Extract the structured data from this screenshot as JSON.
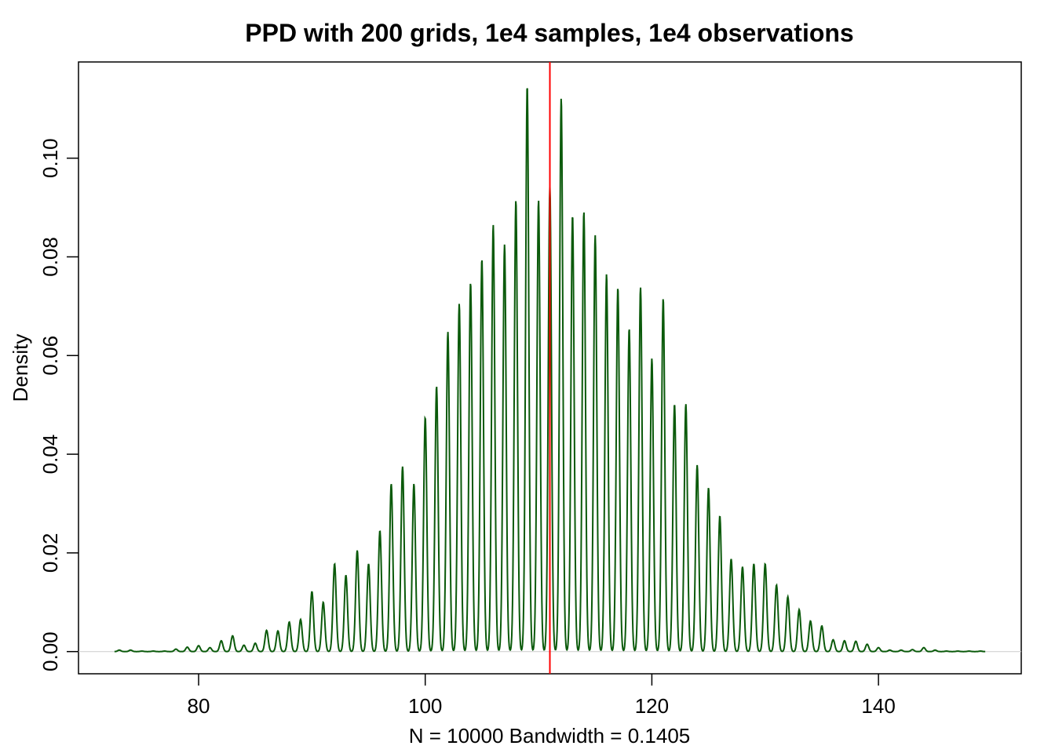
{
  "chart_data": {
    "type": "line",
    "title": "PPD with 200 grids, 1e4 samples, 1e4 observations",
    "xlabel": "N = 10000   Bandwidth = 0.1405",
    "ylabel": "Density",
    "xlim": [
      69.4,
      152.6
    ],
    "ylim": [
      -0.0045,
      0.1195
    ],
    "x_ticks": [
      80,
      100,
      120,
      140
    ],
    "x_tick_labels": [
      "80",
      "100",
      "120",
      "140"
    ],
    "y_ticks": [
      0.0,
      0.02,
      0.04,
      0.06,
      0.08,
      0.1
    ],
    "y_tick_labels": [
      "0.00",
      "0.02",
      "0.04",
      "0.06",
      "0.08",
      "0.10"
    ],
    "grid": false,
    "bandwidth": 0.1405,
    "n": 10000,
    "series": [
      {
        "color": "#0b5a0b",
        "x": [
          73,
          74,
          75,
          76,
          77,
          78,
          79,
          80,
          81,
          82,
          83,
          84,
          85,
          86,
          87,
          88,
          89,
          90,
          91,
          92,
          93,
          94,
          95,
          96,
          97,
          98,
          99,
          100,
          101,
          102,
          103,
          104,
          105,
          106,
          107,
          108,
          109,
          110,
          111,
          112,
          113,
          114,
          115,
          116,
          117,
          118,
          119,
          120,
          121,
          122,
          123,
          124,
          125,
          126,
          127,
          128,
          129,
          130,
          131,
          132,
          133,
          134,
          135,
          136,
          137,
          138,
          139,
          140,
          141,
          142,
          143,
          144,
          145,
          146,
          147,
          148,
          149
        ],
        "peaks": [
          0.0003,
          0.0003,
          0.0001,
          0.0001,
          0.0001,
          0.0005,
          0.0009,
          0.0012,
          0.0008,
          0.0022,
          0.0032,
          0.0013,
          0.0017,
          0.0043,
          0.0042,
          0.006,
          0.0065,
          0.0122,
          0.01,
          0.0178,
          0.0155,
          0.0205,
          0.0178,
          0.0245,
          0.034,
          0.0375,
          0.034,
          0.0475,
          0.0538,
          0.0648,
          0.0705,
          0.0748,
          0.0796,
          0.0865,
          0.0825,
          0.0915,
          0.1148,
          0.0915,
          0.0942,
          0.1122,
          0.0885,
          0.0892,
          0.0844,
          0.0765,
          0.0738,
          0.0655,
          0.0738,
          0.0594,
          0.0716,
          0.0502,
          0.0502,
          0.0378,
          0.0332,
          0.0275,
          0.0188,
          0.0172,
          0.0178,
          0.0178,
          0.0135,
          0.0111,
          0.0085,
          0.0062,
          0.0052,
          0.0024,
          0.0022,
          0.0021,
          0.0015,
          0.0008,
          0.0003,
          0.0003,
          0.0004,
          0.0008,
          0.0003,
          0.0001,
          0.0001,
          0.0001,
          0.0001
        ]
      }
    ],
    "vline": {
      "x": 111,
      "color": "#ff0000"
    },
    "baseline_color": "#cccccc"
  }
}
